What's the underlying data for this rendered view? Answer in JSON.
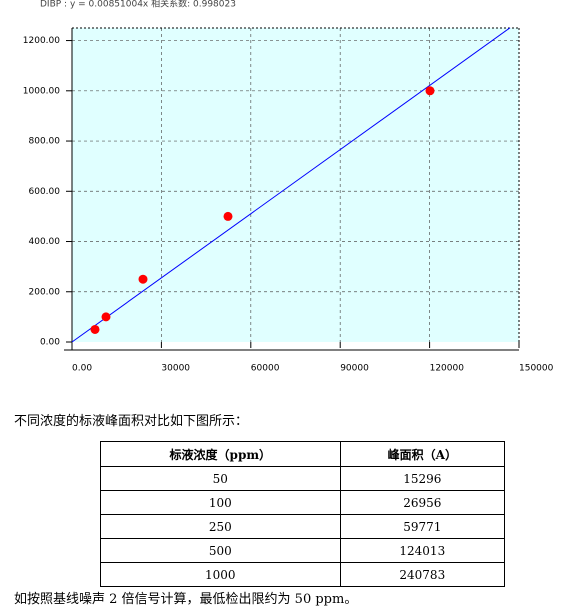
{
  "chart_data": {
    "type": "scatter",
    "title": "DIBP : y = 0.00851004x 相关系数: 0.998023",
    "x": [
      7718,
      11409,
      23826,
      52349,
      120134
    ],
    "values": [
      50,
      100,
      250,
      500,
      1000
    ],
    "color": "#ff0000",
    "line_color": "#0000ff",
    "trendline": {
      "x": [
        0,
        147000
      ],
      "y": [
        0,
        1251
      ]
    },
    "xlim": [
      0,
      150000
    ],
    "ylim": [
      0,
      1250
    ],
    "xticks": [
      {
        "value": 0,
        "label": "0.00"
      },
      30000,
      60000,
      90000,
      120000,
      150000
    ],
    "yticks": [
      {
        "value": 0,
        "label": "0.00"
      },
      {
        "value": 200,
        "label": "200.00"
      },
      {
        "value": 400,
        "label": "400.00"
      },
      {
        "value": 600,
        "label": "600.00"
      },
      {
        "value": 800,
        "label": "800.00"
      },
      {
        "value": 1000,
        "label": "1000.00"
      },
      {
        "value": 1200,
        "label": "1200.00"
      }
    ],
    "grid": true
  },
  "intro": "不同浓度的标液峰面积对比如下图所示：",
  "table": {
    "headers": [
      "标液浓度（ppm）",
      "峰面积（A）"
    ],
    "rows": [
      [
        50,
        15296
      ],
      [
        100,
        26956
      ],
      [
        250,
        59771
      ],
      [
        500,
        124013
      ],
      [
        1000,
        240783
      ]
    ]
  },
  "footer": "如按照基线噪声 2 倍信号计算，最低检出限约为 50 ppm。"
}
